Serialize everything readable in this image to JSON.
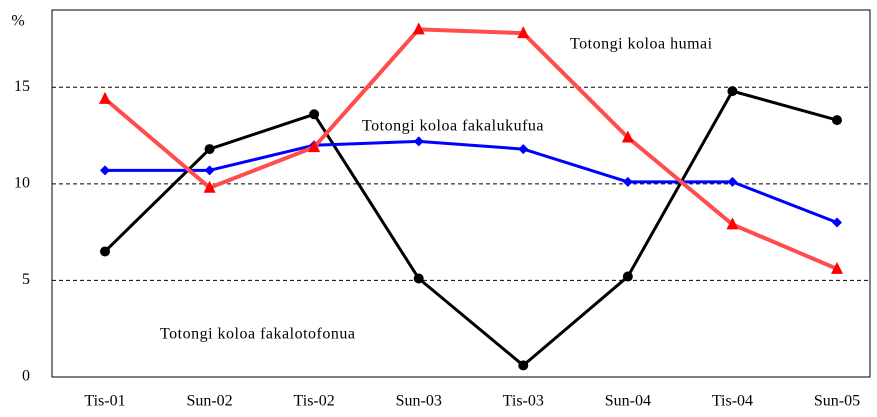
{
  "chart_data": {
    "type": "line",
    "y_label": "%",
    "categories": [
      "Tis-01",
      "Sun-02",
      "Tis-02",
      "Sun-03",
      "Tis-03",
      "Sun-04",
      "Tis-04",
      "Sun-05"
    ],
    "series": [
      {
        "name": "Totongi koloa fakalotofonua",
        "color": "#000000",
        "marker": "circle",
        "values": [
          6.5,
          11.8,
          13.6,
          5.1,
          0.6,
          5.2,
          14.8,
          13.3
        ]
      },
      {
        "name": "Totongi koloa fakalukufua",
        "color": "#0000ff",
        "marker": "diamond",
        "values": [
          10.7,
          10.7,
          12.0,
          12.2,
          11.8,
          10.1,
          10.1,
          8.0
        ]
      },
      {
        "name": "Totongi koloa humai",
        "color": "#ff4d4d",
        "marker": "triangle",
        "values": [
          14.4,
          9.8,
          11.9,
          18.0,
          17.8,
          12.4,
          7.9,
          5.6
        ]
      }
    ],
    "ylim": [
      0,
      19
    ],
    "yticks": [
      0,
      5,
      10,
      15
    ],
    "grid": true
  }
}
